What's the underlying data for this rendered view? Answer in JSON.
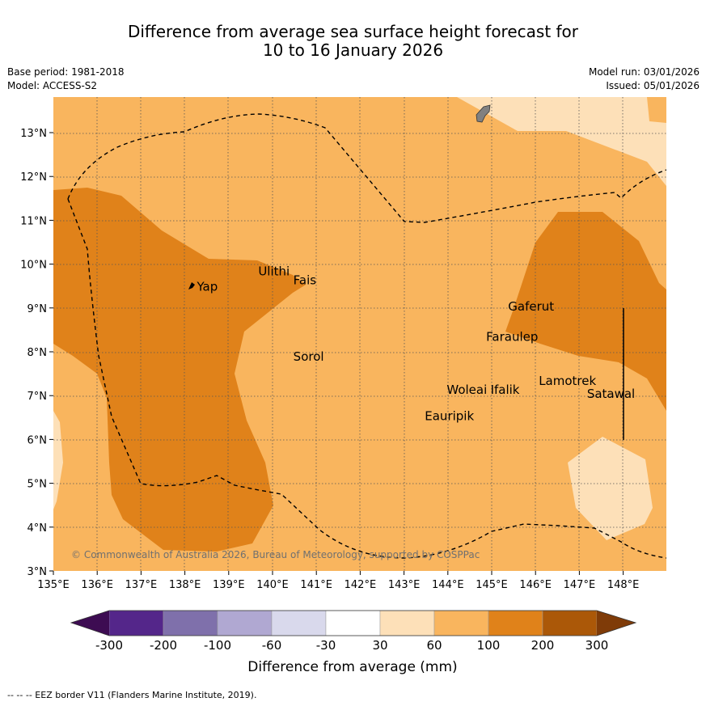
{
  "title_line1": "Difference from average sea surface height forecast for",
  "title_line2": "10 to 16 January 2026",
  "meta_left": {
    "base_period": "Base period: 1981-2018",
    "model": "Model: ACCESS-S2"
  },
  "meta_right": {
    "model_run": "Model run: 03/01/2026",
    "issued": "Issued: 05/01/2026"
  },
  "map": {
    "lon_ticks": [
      "135°E",
      "136°E",
      "137°E",
      "138°E",
      "139°E",
      "140°E",
      "141°E",
      "142°E",
      "143°E",
      "144°E",
      "145°E",
      "146°E",
      "147°E",
      "148°E"
    ],
    "lat_ticks": [
      "3°N",
      "4°N",
      "5°N",
      "6°N",
      "7°N",
      "8°N",
      "9°N",
      "10°N",
      "11°N",
      "12°N",
      "13°N"
    ],
    "places": [
      {
        "name": "Yap",
        "lon": 138.2,
        "lat": 9.45
      },
      {
        "name": "Ulithi",
        "lon": 139.6,
        "lat": 9.8
      },
      {
        "name": "Fais",
        "lon": 140.4,
        "lat": 9.6
      },
      {
        "name": "Sorol",
        "lon": 140.4,
        "lat": 7.85
      },
      {
        "name": "Gaferut",
        "lon": 145.3,
        "lat": 9.0
      },
      {
        "name": "Faraulep",
        "lon": 144.8,
        "lat": 8.3
      },
      {
        "name": "Woleai",
        "lon": 143.9,
        "lat": 7.1
      },
      {
        "name": "Ifalik",
        "lon": 144.9,
        "lat": 7.1
      },
      {
        "name": "Lamotrek",
        "lon": 146.0,
        "lat": 7.3
      },
      {
        "name": "Satawal",
        "lon": 147.1,
        "lat": 7.0
      },
      {
        "name": "Eauripik",
        "lon": 143.4,
        "lat": 6.5
      }
    ],
    "copyright": "© Commonwealth of Australia 2026, Bureau of Meteorology, supported by COSPPac"
  },
  "colorbar": {
    "tick_labels": [
      "-300",
      "-200",
      "-100",
      "-60",
      "-30",
      "30",
      "60",
      "100",
      "200",
      "300"
    ],
    "colors": [
      "#3d0c52",
      "#54268a",
      "#7f70ab",
      "#b0a8d2",
      "#d9d9ec",
      "#ffffff",
      "#fde0b8",
      "#f9b55e",
      "#e0821a",
      "#ab5808",
      "#7f3b08"
    ],
    "label": "Difference from average (mm)"
  },
  "footer": "--  --  -- EEZ border V11 (Flanders Marine Institute, 2019)."
}
